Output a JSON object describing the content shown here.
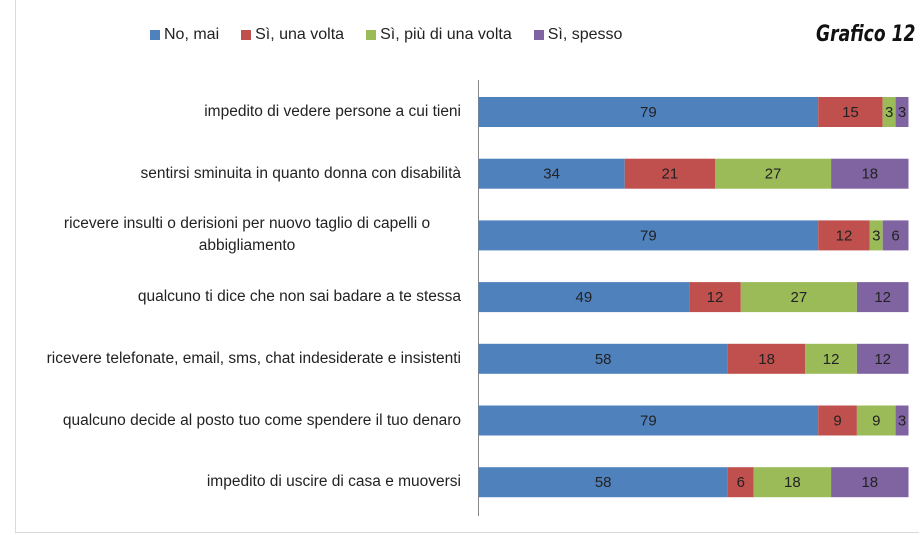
{
  "chart_data": {
    "type": "stacked-bar-horizontal",
    "title": "Grafico 12",
    "categories": [
      "impedito di vedere persone a cui tieni",
      "sentirsi sminuita in quanto donna con disabilità",
      "ricevere insulti o derisioni per nuovo taglio di capelli o abbigliamento",
      "qualcuno ti dice che non sai badare a te stessa",
      "ricevere telefonate, email, sms, chat indesiderate e insistenti",
      "qualcuno decide al posto tuo come spendere il tuo denaro",
      "impedito di uscire di casa e muoversi"
    ],
    "series": [
      {
        "name": "No, mai",
        "color": "#4f81bd",
        "values": [
          79,
          34,
          79,
          49,
          58,
          79,
          58
        ]
      },
      {
        "name": "Sì, una volta",
        "color": "#c0504d",
        "values": [
          15,
          21,
          12,
          12,
          18,
          9,
          6
        ]
      },
      {
        "name": "Sì, più di una volta",
        "color": "#9bbb59",
        "values": [
          3,
          27,
          3,
          27,
          12,
          9,
          18
        ]
      },
      {
        "name": "Sì, spesso",
        "color": "#8064a2",
        "values": [
          3,
          18,
          6,
          12,
          12,
          3,
          18
        ]
      }
    ],
    "legend": "top"
  }
}
